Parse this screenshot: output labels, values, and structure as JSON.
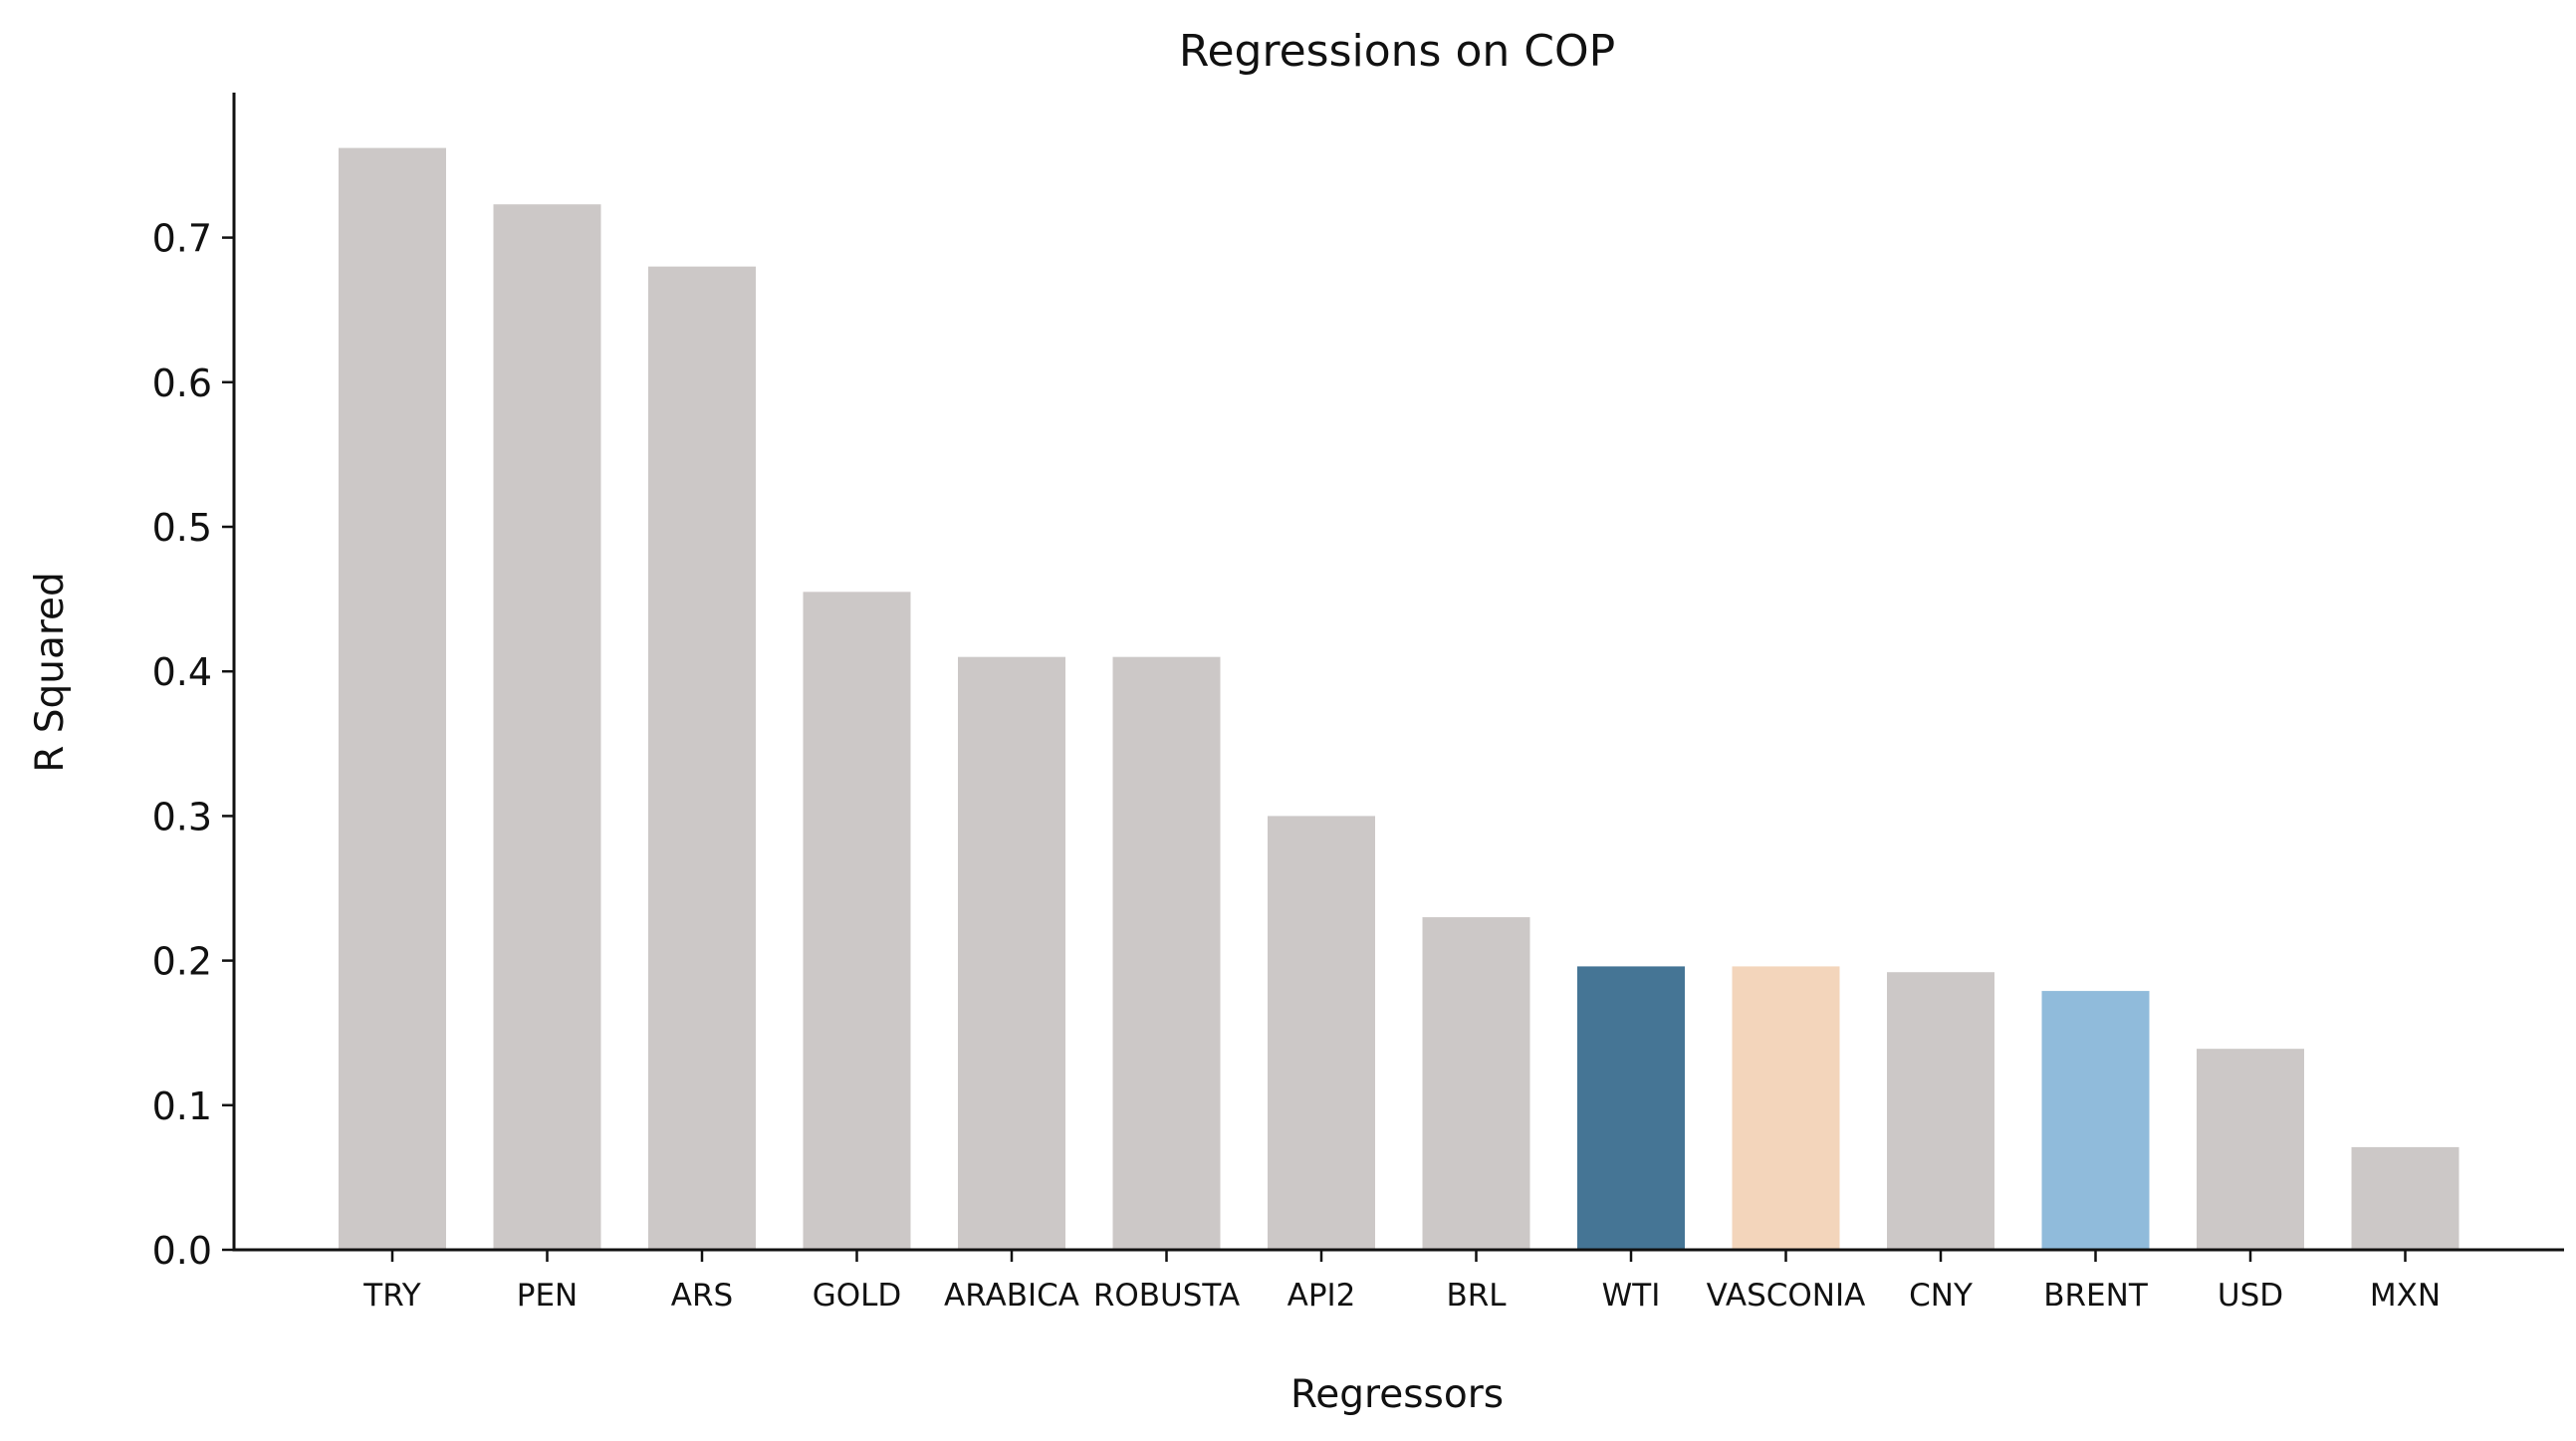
{
  "chart_data": {
    "type": "bar",
    "title": "Regressions on COP",
    "xlabel": "Regressors",
    "ylabel": "R Squared",
    "categories": [
      "TRY",
      "PEN",
      "ARS",
      "GOLD",
      "ARABICA",
      "ROBUSTA",
      "API2",
      "BRL",
      "WTI",
      "VASCONIA",
      "CNY",
      "BRENT",
      "USD",
      "MXN"
    ],
    "values": [
      0.762,
      0.723,
      0.68,
      0.455,
      0.41,
      0.41,
      0.3,
      0.23,
      0.196,
      0.196,
      0.192,
      0.179,
      0.139,
      0.071
    ],
    "colors": [
      "#ccc8c7",
      "#ccc8c7",
      "#ccc8c7",
      "#ccc8c7",
      "#ccc8c7",
      "#ccc8c7",
      "#ccc8c7",
      "#ccc8c7",
      "#457595",
      "#f3d5bb",
      "#ccc8c7",
      "#90bbdb",
      "#ccc8c7",
      "#ccc8c7"
    ],
    "yticks": [
      "0.0",
      "0.1",
      "0.2",
      "0.3",
      "0.4",
      "0.5",
      "0.6",
      "0.7"
    ],
    "ylim": [
      0,
      0.8
    ],
    "grid": false,
    "legend": "none"
  }
}
